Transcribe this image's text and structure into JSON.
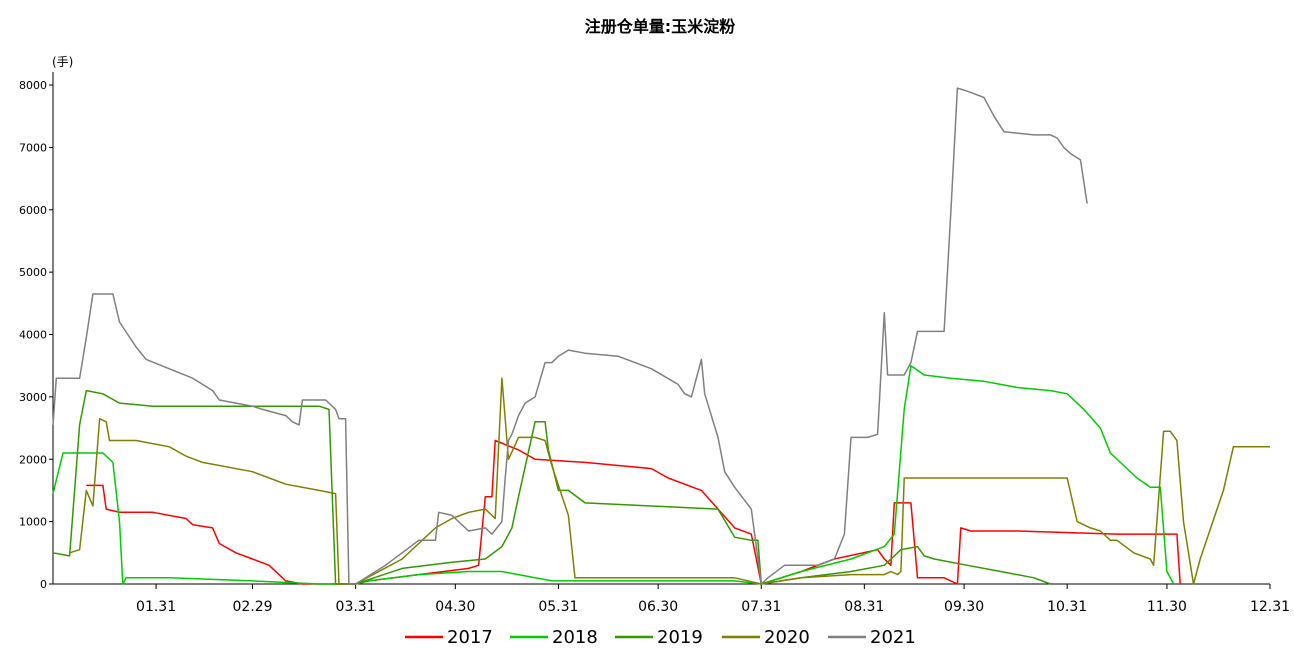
{
  "chart_data": {
    "type": "line",
    "title": "注册仓单量:玉米淀粉",
    "unit": "(手)",
    "ylim": [
      0,
      8000
    ],
    "yticks": [
      0,
      1000,
      2000,
      3000,
      4000,
      5000,
      6000,
      7000,
      8000
    ],
    "xlim": [
      0,
      366
    ],
    "xticks": [
      {
        "label": "01.31",
        "day": 31
      },
      {
        "label": "02.29",
        "day": 60
      },
      {
        "label": "03.31",
        "day": 91
      },
      {
        "label": "04.30",
        "day": 121
      },
      {
        "label": "05.31",
        "day": 152
      },
      {
        "label": "06.30",
        "day": 182
      },
      {
        "label": "07.31",
        "day": 213
      },
      {
        "label": "08.31",
        "day": 244
      },
      {
        "label": "09.30",
        "day": 274
      },
      {
        "label": "10.31",
        "day": 305
      },
      {
        "label": "11.30",
        "day": 335
      },
      {
        "label": "12.31",
        "day": 366
      }
    ],
    "legend_position": "bottom",
    "grid": false,
    "series": [
      {
        "name": "2017",
        "color": "#ff0000",
        "points": [
          [
            10,
            1580
          ],
          [
            15,
            1580
          ],
          [
            16,
            1200
          ],
          [
            20,
            1150
          ],
          [
            30,
            1150
          ],
          [
            40,
            1050
          ],
          [
            42,
            950
          ],
          [
            48,
            900
          ],
          [
            50,
            650
          ],
          [
            55,
            500
          ],
          [
            60,
            400
          ],
          [
            65,
            300
          ],
          [
            70,
            50
          ],
          [
            75,
            0
          ],
          [
            85,
            0
          ],
          [
            91,
            0
          ],
          [
            95,
            50
          ],
          [
            110,
            150
          ],
          [
            125,
            250
          ],
          [
            128,
            300
          ],
          [
            130,
            1400
          ],
          [
            132,
            1400
          ],
          [
            133,
            2300
          ],
          [
            140,
            2150
          ],
          [
            145,
            2000
          ],
          [
            160,
            1950
          ],
          [
            170,
            1900
          ],
          [
            180,
            1850
          ],
          [
            185,
            1700
          ],
          [
            195,
            1500
          ],
          [
            205,
            900
          ],
          [
            210,
            800
          ],
          [
            213,
            0
          ],
          [
            225,
            200
          ],
          [
            235,
            400
          ],
          [
            248,
            550
          ],
          [
            250,
            400
          ],
          [
            252,
            300
          ],
          [
            253,
            1300
          ],
          [
            258,
            1300
          ],
          [
            260,
            100
          ],
          [
            268,
            100
          ],
          [
            272,
            0
          ],
          [
            273,
            900
          ],
          [
            276,
            850
          ],
          [
            290,
            850
          ],
          [
            320,
            800
          ],
          [
            330,
            800
          ],
          [
            338,
            800
          ],
          [
            339,
            0
          ]
        ]
      },
      {
        "name": "2018",
        "color": "#00cc00",
        "points": [
          [
            0,
            1450
          ],
          [
            3,
            2100
          ],
          [
            5,
            2100
          ],
          [
            15,
            2100
          ],
          [
            18,
            1950
          ],
          [
            20,
            1000
          ],
          [
            21,
            0
          ],
          [
            22,
            100
          ],
          [
            35,
            100
          ],
          [
            60,
            50
          ],
          [
            80,
            0
          ],
          [
            91,
            0
          ],
          [
            95,
            50
          ],
          [
            110,
            150
          ],
          [
            125,
            200
          ],
          [
            135,
            200
          ],
          [
            140,
            150
          ],
          [
            150,
            50
          ],
          [
            190,
            50
          ],
          [
            205,
            50
          ],
          [
            213,
            0
          ],
          [
            225,
            200
          ],
          [
            240,
            400
          ],
          [
            250,
            600
          ],
          [
            253,
            800
          ],
          [
            256,
            2800
          ],
          [
            258,
            3500
          ],
          [
            262,
            3350
          ],
          [
            270,
            3300
          ],
          [
            280,
            3250
          ],
          [
            290,
            3150
          ],
          [
            300,
            3100
          ],
          [
            305,
            3050
          ],
          [
            310,
            2800
          ],
          [
            315,
            2500
          ],
          [
            318,
            2100
          ],
          [
            322,
            1900
          ],
          [
            326,
            1700
          ],
          [
            330,
            1550
          ],
          [
            333,
            1550
          ],
          [
            335,
            200
          ],
          [
            337,
            0
          ]
        ]
      },
      {
        "name": "2019",
        "color": "#339900",
        "points": [
          [
            0,
            500
          ],
          [
            5,
            450
          ],
          [
            8,
            2550
          ],
          [
            10,
            3100
          ],
          [
            15,
            3050
          ],
          [
            20,
            2900
          ],
          [
            30,
            2850
          ],
          [
            60,
            2850
          ],
          [
            80,
            2850
          ],
          [
            83,
            2800
          ],
          [
            85,
            0
          ],
          [
            91,
            0
          ],
          [
            105,
            250
          ],
          [
            120,
            350
          ],
          [
            130,
            400
          ],
          [
            135,
            600
          ],
          [
            138,
            900
          ],
          [
            140,
            1400
          ],
          [
            145,
            2600
          ],
          [
            148,
            2600
          ],
          [
            149,
            2150
          ],
          [
            152,
            1500
          ],
          [
            155,
            1500
          ],
          [
            160,
            1300
          ],
          [
            180,
            1250
          ],
          [
            200,
            1200
          ],
          [
            205,
            750
          ],
          [
            210,
            700
          ],
          [
            212,
            700
          ],
          [
            213,
            0
          ],
          [
            225,
            100
          ],
          [
            240,
            200
          ],
          [
            250,
            300
          ],
          [
            255,
            550
          ],
          [
            260,
            600
          ],
          [
            262,
            450
          ],
          [
            265,
            400
          ],
          [
            275,
            300
          ],
          [
            285,
            200
          ],
          [
            295,
            100
          ],
          [
            300,
            0
          ]
        ]
      },
      {
        "name": "2020",
        "color": "#808000",
        "points": [
          [
            5,
            500
          ],
          [
            8,
            550
          ],
          [
            10,
            1500
          ],
          [
            12,
            1250
          ],
          [
            14,
            2650
          ],
          [
            16,
            2600
          ],
          [
            17,
            2300
          ],
          [
            25,
            2300
          ],
          [
            35,
            2200
          ],
          [
            40,
            2050
          ],
          [
            45,
            1950
          ],
          [
            60,
            1800
          ],
          [
            70,
            1600
          ],
          [
            80,
            1500
          ],
          [
            85,
            1450
          ],
          [
            86,
            0
          ],
          [
            91,
            0
          ],
          [
            105,
            400
          ],
          [
            115,
            900
          ],
          [
            120,
            1050
          ],
          [
            125,
            1150
          ],
          [
            130,
            1200
          ],
          [
            133,
            1050
          ],
          [
            135,
            3300
          ],
          [
            137,
            2000
          ],
          [
            140,
            2350
          ],
          [
            145,
            2350
          ],
          [
            148,
            2300
          ],
          [
            150,
            1900
          ],
          [
            155,
            1100
          ],
          [
            157,
            100
          ],
          [
            170,
            100
          ],
          [
            205,
            100
          ],
          [
            213,
            0
          ],
          [
            225,
            100
          ],
          [
            240,
            150
          ],
          [
            250,
            150
          ],
          [
            252,
            200
          ],
          [
            254,
            150
          ],
          [
            255,
            200
          ],
          [
            256,
            1700
          ],
          [
            260,
            1700
          ],
          [
            290,
            1700
          ],
          [
            305,
            1700
          ],
          [
            308,
            1000
          ],
          [
            312,
            900
          ],
          [
            315,
            850
          ],
          [
            318,
            700
          ],
          [
            320,
            700
          ],
          [
            325,
            500
          ],
          [
            330,
            400
          ],
          [
            331,
            300
          ],
          [
            332,
            1000
          ],
          [
            334,
            2450
          ],
          [
            336,
            2450
          ],
          [
            338,
            2300
          ],
          [
            340,
            1000
          ],
          [
            343,
            0
          ],
          [
            345,
            400
          ],
          [
            352,
            1500
          ],
          [
            355,
            2200
          ],
          [
            366,
            2200
          ]
        ]
      },
      {
        "name": "2021",
        "color": "#808080",
        "points": [
          [
            0,
            2550
          ],
          [
            1,
            3300
          ],
          [
            8,
            3300
          ],
          [
            10,
            3950
          ],
          [
            12,
            4650
          ],
          [
            18,
            4650
          ],
          [
            20,
            4200
          ],
          [
            25,
            3800
          ],
          [
            28,
            3600
          ],
          [
            35,
            3450
          ],
          [
            42,
            3300
          ],
          [
            48,
            3100
          ],
          [
            50,
            2950
          ],
          [
            55,
            2900
          ],
          [
            60,
            2850
          ],
          [
            63,
            2800
          ],
          [
            70,
            2700
          ],
          [
            72,
            2600
          ],
          [
            74,
            2550
          ],
          [
            75,
            2950
          ],
          [
            80,
            2950
          ],
          [
            82,
            2950
          ],
          [
            85,
            2800
          ],
          [
            86,
            2650
          ],
          [
            88,
            2650
          ],
          [
            89,
            0
          ],
          [
            91,
            0
          ],
          [
            100,
            300
          ],
          [
            110,
            700
          ],
          [
            115,
            700
          ],
          [
            116,
            1150
          ],
          [
            120,
            1100
          ],
          [
            125,
            850
          ],
          [
            130,
            900
          ],
          [
            132,
            800
          ],
          [
            135,
            1000
          ],
          [
            136,
            1700
          ],
          [
            137,
            2300
          ],
          [
            138,
            2400
          ],
          [
            140,
            2700
          ],
          [
            142,
            2900
          ],
          [
            145,
            3000
          ],
          [
            148,
            3550
          ],
          [
            150,
            3550
          ],
          [
            152,
            3650
          ],
          [
            155,
            3750
          ],
          [
            160,
            3700
          ],
          [
            170,
            3650
          ],
          [
            180,
            3450
          ],
          [
            188,
            3200
          ],
          [
            190,
            3050
          ],
          [
            192,
            3000
          ],
          [
            195,
            3600
          ],
          [
            196,
            3050
          ],
          [
            200,
            2350
          ],
          [
            202,
            1800
          ],
          [
            205,
            1550
          ],
          [
            210,
            1200
          ],
          [
            213,
            0
          ],
          [
            215,
            100
          ],
          [
            220,
            300
          ],
          [
            230,
            300
          ],
          [
            235,
            400
          ],
          [
            238,
            800
          ],
          [
            240,
            2350
          ],
          [
            245,
            2350
          ],
          [
            248,
            2400
          ],
          [
            250,
            4350
          ],
          [
            251,
            3350
          ],
          [
            256,
            3350
          ],
          [
            258,
            3550
          ],
          [
            260,
            4050
          ],
          [
            265,
            4050
          ],
          [
            268,
            4050
          ],
          [
            270,
            5950
          ],
          [
            272,
            7950
          ],
          [
            275,
            7900
          ],
          [
            280,
            7800
          ],
          [
            283,
            7500
          ],
          [
            286,
            7250
          ],
          [
            295,
            7200
          ],
          [
            300,
            7200
          ],
          [
            302,
            7150
          ],
          [
            304,
            7000
          ],
          [
            306,
            6900
          ],
          [
            309,
            6800
          ],
          [
            311,
            6100
          ]
        ]
      }
    ]
  }
}
